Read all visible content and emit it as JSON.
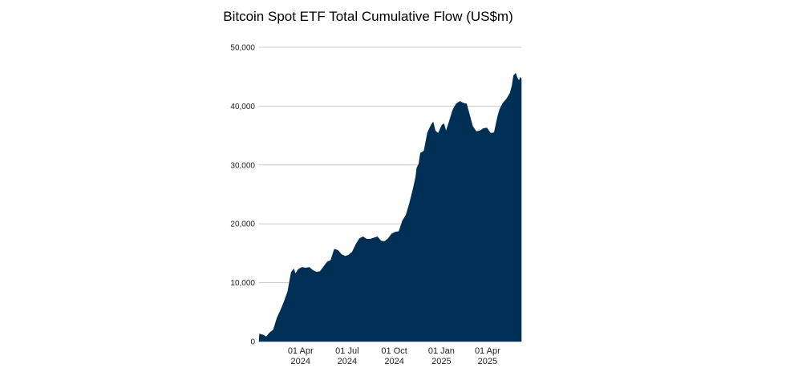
{
  "chart_data": {
    "type": "area",
    "title": "Bitcoin Spot ETF Total Cumulative Flow (US$m)",
    "xlabel": "",
    "ylabel": "",
    "ylim": [
      0,
      50000
    ],
    "y_ticks": [
      0,
      10000,
      20000,
      30000,
      40000,
      50000
    ],
    "y_tick_labels": [
      "0",
      "10,000",
      "20,000",
      "30,000",
      "40,000",
      "50,000"
    ],
    "x_range": [
      "2024-01-11",
      "2025-06-06"
    ],
    "x_ticks": [
      {
        "date": "2024-04-01",
        "line1": "01 Apr",
        "line2": "2024"
      },
      {
        "date": "2024-07-01",
        "line1": "01 Jul",
        "line2": "2024"
      },
      {
        "date": "2024-10-01",
        "line1": "01 Oct",
        "line2": "2024"
      },
      {
        "date": "2025-01-01",
        "line1": "01 Jan",
        "line2": "2025"
      },
      {
        "date": "2025-04-01",
        "line1": "01 Apr",
        "line2": "2025"
      }
    ],
    "grid": true,
    "legend": "none",
    "series": [
      {
        "color": "#002f56",
        "points": [
          [
            "2024-01-11",
            0
          ],
          [
            "2024-01-12",
            1300
          ],
          [
            "2024-01-19",
            1100
          ],
          [
            "2024-01-25",
            800
          ],
          [
            "2024-02-01",
            1500
          ],
          [
            "2024-02-08",
            2000
          ],
          [
            "2024-02-15",
            4000
          ],
          [
            "2024-02-22",
            5300
          ],
          [
            "2024-02-29",
            6800
          ],
          [
            "2024-03-07",
            8500
          ],
          [
            "2024-03-14",
            11800
          ],
          [
            "2024-03-19",
            12300
          ],
          [
            "2024-03-22",
            11500
          ],
          [
            "2024-03-28",
            12300
          ],
          [
            "2024-04-04",
            12600
          ],
          [
            "2024-04-11",
            12500
          ],
          [
            "2024-04-18",
            12600
          ],
          [
            "2024-04-25",
            12100
          ],
          [
            "2024-05-02",
            11800
          ],
          [
            "2024-05-09",
            11900
          ],
          [
            "2024-05-16",
            12700
          ],
          [
            "2024-05-23",
            13500
          ],
          [
            "2024-05-30",
            13800
          ],
          [
            "2024-06-06",
            15700
          ],
          [
            "2024-06-13",
            15500
          ],
          [
            "2024-06-20",
            14800
          ],
          [
            "2024-06-27",
            14500
          ],
          [
            "2024-07-04",
            14700
          ],
          [
            "2024-07-11",
            15200
          ],
          [
            "2024-07-18",
            16500
          ],
          [
            "2024-07-25",
            17500
          ],
          [
            "2024-08-01",
            17800
          ],
          [
            "2024-08-08",
            17400
          ],
          [
            "2024-08-15",
            17400
          ],
          [
            "2024-08-22",
            17600
          ],
          [
            "2024-08-29",
            17800
          ],
          [
            "2024-09-05",
            17100
          ],
          [
            "2024-09-12",
            17000
          ],
          [
            "2024-09-19",
            17500
          ],
          [
            "2024-09-26",
            18300
          ],
          [
            "2024-10-03",
            18600
          ],
          [
            "2024-10-10",
            18700
          ],
          [
            "2024-10-17",
            20500
          ],
          [
            "2024-10-24",
            21500
          ],
          [
            "2024-10-31",
            23600
          ],
          [
            "2024-11-07",
            26000
          ],
          [
            "2024-11-12",
            28000
          ],
          [
            "2024-11-14",
            29500
          ],
          [
            "2024-11-18",
            30200
          ],
          [
            "2024-11-21",
            32000
          ],
          [
            "2024-11-28",
            32400
          ],
          [
            "2024-12-05",
            35500
          ],
          [
            "2024-12-12",
            36800
          ],
          [
            "2024-12-16",
            37300
          ],
          [
            "2024-12-20",
            35800
          ],
          [
            "2024-12-26",
            35400
          ],
          [
            "2025-01-02",
            36800
          ],
          [
            "2025-01-06",
            37000
          ],
          [
            "2025-01-10",
            35700
          ],
          [
            "2025-01-16",
            37300
          ],
          [
            "2025-01-23",
            39300
          ],
          [
            "2025-01-30",
            40400
          ],
          [
            "2025-02-06",
            40800
          ],
          [
            "2025-02-13",
            40500
          ],
          [
            "2025-02-19",
            40400
          ],
          [
            "2025-02-24",
            38800
          ],
          [
            "2025-03-03",
            36600
          ],
          [
            "2025-03-10",
            35700
          ],
          [
            "2025-03-17",
            35800
          ],
          [
            "2025-03-24",
            36200
          ],
          [
            "2025-03-31",
            36300
          ],
          [
            "2025-04-03",
            35900
          ],
          [
            "2025-04-07",
            35400
          ],
          [
            "2025-04-14",
            35500
          ],
          [
            "2025-04-21",
            38300
          ],
          [
            "2025-04-25",
            39500
          ],
          [
            "2025-05-01",
            40500
          ],
          [
            "2025-05-08",
            41200
          ],
          [
            "2025-05-15",
            42200
          ],
          [
            "2025-05-19",
            43500
          ],
          [
            "2025-05-22",
            45200
          ],
          [
            "2025-05-26",
            45600
          ],
          [
            "2025-05-29",
            44800
          ],
          [
            "2025-06-02",
            44300
          ],
          [
            "2025-06-04",
            44900
          ],
          [
            "2025-06-06",
            44600
          ]
        ]
      }
    ]
  }
}
